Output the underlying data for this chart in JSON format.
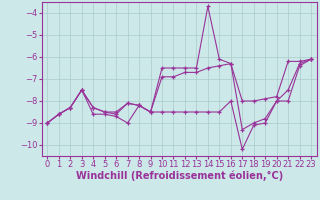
{
  "background_color": "#cce8e8",
  "grid_color": "#aacccc",
  "line_color": "#993399",
  "marker": "+",
  "xlabel": "Windchill (Refroidissement éolien,°C)",
  "xlabel_fontsize": 7,
  "tick_fontsize": 6,
  "xlim": [
    -0.5,
    23.5
  ],
  "ylim": [
    -10.5,
    -3.5
  ],
  "yticks": [
    -10,
    -9,
    -8,
    -7,
    -6,
    -5,
    -4
  ],
  "xticks": [
    0,
    1,
    2,
    3,
    4,
    5,
    6,
    7,
    8,
    9,
    10,
    11,
    12,
    13,
    14,
    15,
    16,
    17,
    18,
    19,
    20,
    21,
    22,
    23
  ],
  "lines": [
    {
      "x": [
        0,
        1,
        2,
        3,
        4,
        5,
        6,
        7,
        8,
        9,
        10,
        11,
        12,
        13,
        14,
        15,
        16,
        17,
        18,
        19,
        20,
        21,
        22,
        23
      ],
      "y": [
        -9.0,
        -8.6,
        -8.3,
        -7.5,
        -8.3,
        -8.5,
        -8.5,
        -8.1,
        -8.2,
        -8.5,
        -6.9,
        -6.9,
        -6.7,
        -6.7,
        -6.5,
        -6.4,
        -6.3,
        -8.0,
        -8.0,
        -7.9,
        -7.8,
        -6.2,
        -6.2,
        -6.1
      ]
    },
    {
      "x": [
        0,
        1,
        2,
        3,
        4,
        5,
        6,
        7,
        8,
        9,
        10,
        11,
        12,
        13,
        14,
        15,
        16,
        17,
        18,
        19,
        20,
        21,
        22,
        23
      ],
      "y": [
        -9.0,
        -8.6,
        -8.3,
        -7.5,
        -8.6,
        -8.6,
        -8.7,
        -9.0,
        -8.2,
        -8.5,
        -6.5,
        -6.5,
        -6.5,
        -6.5,
        -3.7,
        -6.1,
        -6.3,
        -9.3,
        -9.0,
        -8.8,
        -8.0,
        -7.5,
        -6.3,
        -6.1
      ]
    },
    {
      "x": [
        0,
        1,
        2,
        3,
        4,
        5,
        6,
        7,
        8,
        9,
        10,
        11,
        12,
        13,
        14,
        15,
        16,
        17,
        18,
        19,
        20,
        21,
        22,
        23
      ],
      "y": [
        -9.0,
        -8.6,
        -8.3,
        -7.5,
        -8.3,
        -8.5,
        -8.6,
        -8.1,
        -8.2,
        -8.5,
        -8.5,
        -8.5,
        -8.5,
        -8.5,
        -8.5,
        -8.5,
        -8.0,
        -10.2,
        -9.1,
        -9.0,
        -8.0,
        -8.0,
        -6.4,
        -6.1
      ]
    }
  ]
}
